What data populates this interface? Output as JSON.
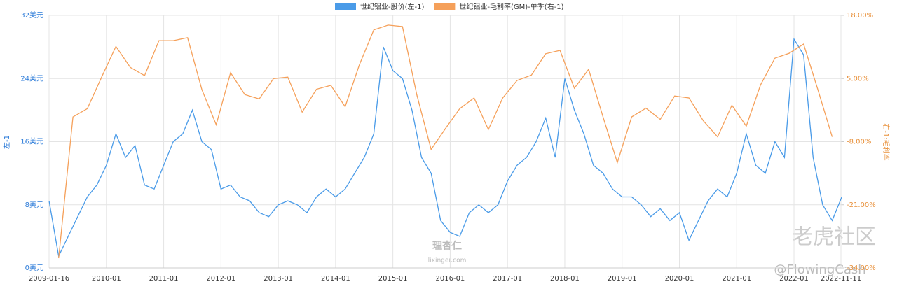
{
  "chart_data": {
    "type": "line",
    "legend_position": "top",
    "grid": true,
    "y_label": "左-1",
    "y2_label": "右-1:毛利率",
    "annotations": [
      "理杏仁",
      "lixinger.com",
      "老虎社区",
      "@FlowingCash"
    ],
    "xlim": [
      "2009-01-16",
      "2022-11-11"
    ],
    "xticks": [
      "2009-01-16",
      "2010-01",
      "2011-01",
      "2012-01",
      "2013-01",
      "2014-01",
      "2015-01",
      "2016-01",
      "2017-01",
      "2018-01",
      "2019-01",
      "2020-01",
      "2021-01",
      "2022-01",
      "2022-11-11"
    ],
    "ylim": [
      0,
      32
    ],
    "yticks": [
      {
        "value": 0,
        "label": "0美元"
      },
      {
        "value": 8,
        "label": "8美元"
      },
      {
        "value": 16,
        "label": "16美元"
      },
      {
        "value": 24,
        "label": "24美元"
      },
      {
        "value": 32,
        "label": "32美元"
      }
    ],
    "y2lim": [
      -34,
      18
    ],
    "y2ticks": [
      {
        "value": -34,
        "label": "-34.00%"
      },
      {
        "value": -21,
        "label": "-21.00%"
      },
      {
        "value": -8,
        "label": "-8.00%"
      },
      {
        "value": 5,
        "label": "5.00%"
      },
      {
        "value": 18,
        "label": "18.00%"
      }
    ],
    "series": [
      {
        "name": "世纪铝业-股价(左-1)",
        "color": "#4a9be8",
        "axis": "y",
        "x": [
          "2009-01",
          "2009-03",
          "2009-05",
          "2009-07",
          "2009-09",
          "2009-11",
          "2010-01",
          "2010-03",
          "2010-05",
          "2010-07",
          "2010-09",
          "2010-11",
          "2011-01",
          "2011-03",
          "2011-05",
          "2011-07",
          "2011-09",
          "2011-11",
          "2012-01",
          "2012-03",
          "2012-05",
          "2012-07",
          "2012-09",
          "2012-11",
          "2013-01",
          "2013-03",
          "2013-05",
          "2013-07",
          "2013-09",
          "2013-11",
          "2014-01",
          "2014-03",
          "2014-05",
          "2014-07",
          "2014-09",
          "2014-11",
          "2015-01",
          "2015-03",
          "2015-05",
          "2015-07",
          "2015-09",
          "2015-11",
          "2016-01",
          "2016-03",
          "2016-05",
          "2016-07",
          "2016-09",
          "2016-11",
          "2017-01",
          "2017-03",
          "2017-05",
          "2017-07",
          "2017-09",
          "2017-11",
          "2018-01",
          "2018-03",
          "2018-05",
          "2018-07",
          "2018-09",
          "2018-11",
          "2019-01",
          "2019-03",
          "2019-05",
          "2019-07",
          "2019-09",
          "2019-11",
          "2020-01",
          "2020-03",
          "2020-05",
          "2020-07",
          "2020-09",
          "2020-11",
          "2021-01",
          "2021-03",
          "2021-05",
          "2021-07",
          "2021-09",
          "2021-11",
          "2022-01",
          "2022-03",
          "2022-05",
          "2022-07",
          "2022-09",
          "2022-11"
        ],
        "values": [
          8.5,
          1.5,
          4,
          6.5,
          9,
          10.5,
          13,
          17,
          14,
          15.5,
          10.5,
          10,
          13,
          16,
          17,
          20,
          16,
          15,
          10,
          10.5,
          9,
          8.5,
          7,
          6.5,
          8,
          8.5,
          8,
          7,
          9,
          10,
          9,
          10,
          12,
          14,
          17,
          28,
          25,
          24,
          20,
          14,
          12,
          6,
          4.5,
          4,
          7,
          8,
          7,
          8,
          11,
          13,
          14,
          16,
          19,
          14,
          24,
          20,
          17,
          13,
          12,
          10,
          9,
          9,
          8,
          6.5,
          7.5,
          6,
          7,
          3.5,
          6,
          8.5,
          10,
          9,
          12,
          17,
          13,
          12,
          16,
          14,
          29,
          27,
          14,
          8,
          6,
          9
        ]
      },
      {
        "name": "世纪铝业-毛利率(GM)-单季(右-1)",
        "color": "#f5a05a",
        "axis": "y2",
        "x": [
          "2009-03",
          "2009-06",
          "2009-09",
          "2009-12",
          "2010-03",
          "2010-06",
          "2010-09",
          "2010-12",
          "2011-03",
          "2011-06",
          "2011-09",
          "2011-12",
          "2012-03",
          "2012-06",
          "2012-09",
          "2012-12",
          "2013-03",
          "2013-06",
          "2013-09",
          "2013-12",
          "2014-03",
          "2014-06",
          "2014-09",
          "2014-12",
          "2015-03",
          "2015-06",
          "2015-09",
          "2015-12",
          "2016-03",
          "2016-06",
          "2016-09",
          "2016-12",
          "2017-03",
          "2017-06",
          "2017-09",
          "2017-12",
          "2018-03",
          "2018-06",
          "2018-09",
          "2018-12",
          "2019-03",
          "2019-06",
          "2019-09",
          "2019-12",
          "2020-03",
          "2020-06",
          "2020-09",
          "2020-12",
          "2021-03",
          "2021-06",
          "2021-09",
          "2021-12",
          "2022-03",
          "2022-06",
          "2022-09"
        ],
        "values": [
          -32,
          -2.9,
          -1.2,
          5.3,
          11.6,
          7.3,
          5.6,
          12.8,
          12.8,
          13.4,
          2.7,
          -4.5,
          6.2,
          1.7,
          0.8,
          5,
          5.3,
          -1.9,
          2.8,
          3.6,
          -0.8,
          7.9,
          15,
          16,
          15.7,
          1.7,
          -9.6,
          -5.3,
          -1.2,
          1,
          -5.5,
          1,
          4.6,
          5.7,
          10.1,
          10.8,
          3,
          6.9,
          -2.9,
          -12.3,
          -2.9,
          -1.1,
          -3.4,
          1.4,
          1,
          -3.7,
          -7,
          -0.5,
          -4.8,
          3.7,
          9.2,
          10.2,
          12.1,
          2.7,
          -7
        ]
      }
    ]
  }
}
